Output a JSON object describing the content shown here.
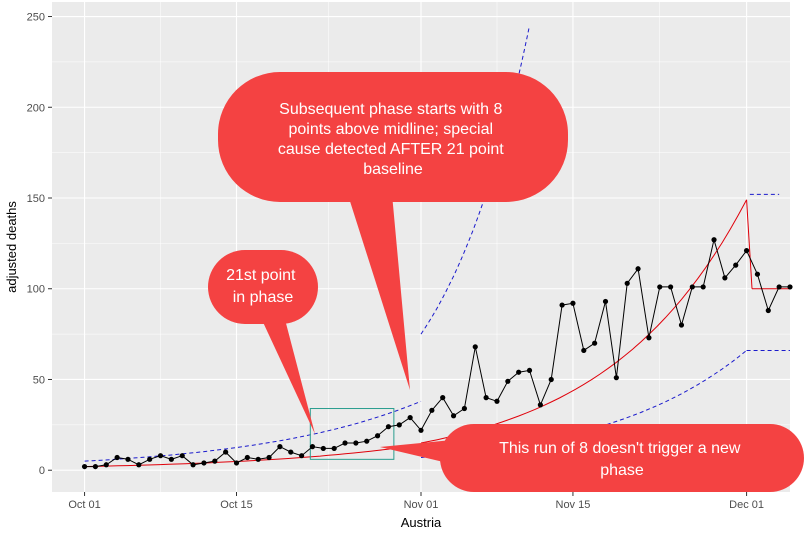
{
  "chart_data": {
    "type": "line",
    "xlabel": "Austria",
    "ylabel": "adjusted deaths",
    "x_ticks": [
      {
        "day": 0,
        "label": "Oct 01"
      },
      {
        "day": 14,
        "label": "Oct 15"
      },
      {
        "day": 31,
        "label": "Nov 01"
      },
      {
        "day": 45,
        "label": "Nov 15"
      },
      {
        "day": 61,
        "label": "Dec 01"
      }
    ],
    "x_range": [
      -3,
      65
    ],
    "y_ticks": [
      0,
      50,
      100,
      150,
      200,
      250
    ],
    "ylim": [
      -12,
      258
    ],
    "grid": true,
    "colors": {
      "panel": "#ebebeb",
      "grid": "#ffffff",
      "points": "#000000",
      "midline": "#e0000a",
      "limits": "#1a1acc",
      "box": "#2a9d8f",
      "callout": "#f44242"
    },
    "series_points": [
      [
        0,
        2
      ],
      [
        1,
        2
      ],
      [
        2,
        3
      ],
      [
        3,
        7
      ],
      [
        4,
        6
      ],
      [
        5,
        3
      ],
      [
        6,
        6
      ],
      [
        7,
        8
      ],
      [
        8,
        6
      ],
      [
        9,
        8
      ],
      [
        10,
        3
      ],
      [
        11,
        4
      ],
      [
        12,
        5
      ],
      [
        13,
        10
      ],
      [
        14,
        4
      ],
      [
        15,
        7
      ],
      [
        16,
        6
      ],
      [
        17,
        7
      ],
      [
        18,
        13
      ],
      [
        19,
        10
      ],
      [
        20,
        8
      ],
      [
        21,
        13
      ],
      [
        22,
        12
      ],
      [
        23,
        12
      ],
      [
        24,
        15
      ],
      [
        25,
        15
      ],
      [
        26,
        16
      ],
      [
        27,
        19
      ],
      [
        28,
        24
      ],
      [
        29,
        25
      ],
      [
        30,
        29
      ],
      [
        31,
        22
      ],
      [
        32,
        33
      ],
      [
        33,
        40
      ],
      [
        34,
        30
      ],
      [
        35,
        34
      ],
      [
        36,
        68
      ],
      [
        37,
        40
      ],
      [
        38,
        38
      ],
      [
        39,
        49
      ],
      [
        40,
        54
      ],
      [
        41,
        55
      ],
      [
        42,
        36
      ],
      [
        43,
        50
      ],
      [
        44,
        91
      ],
      [
        45,
        92
      ],
      [
        46,
        66
      ],
      [
        47,
        70
      ],
      [
        48,
        93
      ],
      [
        49,
        51
      ],
      [
        50,
        103
      ],
      [
        51,
        111
      ],
      [
        52,
        73
      ],
      [
        53,
        101
      ],
      [
        54,
        101
      ],
      [
        55,
        80
      ],
      [
        56,
        101
      ],
      [
        57,
        101
      ],
      [
        58,
        127
      ],
      [
        59,
        106
      ],
      [
        60,
        113
      ],
      [
        61,
        121
      ],
      [
        62,
        108
      ],
      [
        63,
        88
      ],
      [
        64,
        101
      ],
      [
        65,
        101
      ]
    ],
    "phases": [
      {
        "start": 0,
        "end": 31,
        "center_start": 2,
        "center_end": 14,
        "ucl_start": 5,
        "ucl_end": 38,
        "lcl_start": 0,
        "lcl_end": 4
      },
      {
        "start": 31,
        "end": 61,
        "center_start": 15,
        "center_end": 149,
        "ucl_start": 75,
        "ucl_end": 245,
        "lcl_start": 7,
        "lcl_end": 66
      },
      {
        "start": 61,
        "end": 65,
        "center": 100,
        "ucl": 152,
        "lcl": 66
      }
    ],
    "highlight_box": {
      "x": [
        20.8,
        28.5
      ],
      "y": [
        6,
        34
      ]
    },
    "annotations": [
      {
        "lines": [
          "Subsequent phase starts with 8",
          "points above midline; special",
          "cause detected AFTER 21 point",
          "baseline"
        ],
        "target_day": 31,
        "target_value": 40
      },
      {
        "lines": [
          "21st point",
          "in phase"
        ],
        "target_day": 23,
        "target_value": 13
      },
      {
        "lines": [
          "This run of 8 doesn't trigger a new",
          "phase"
        ],
        "target_day": 27,
        "target_value": 12
      }
    ]
  }
}
